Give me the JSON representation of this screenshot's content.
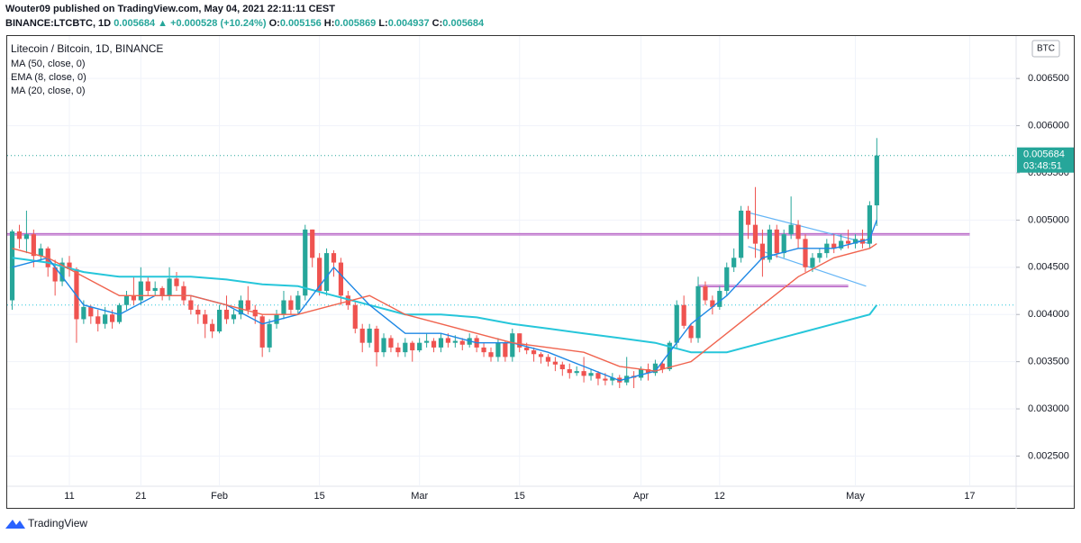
{
  "header": {
    "publisher": "Wouter09 published on TradingView.com, May 04, 2021 22:11:11 CEST",
    "symbol": "BINANCE:LTCBTC, 1D",
    "price": "0.005684",
    "change": "▲ +0.000528 (+10.24%)",
    "o_label": "O:",
    "o": "0.005156",
    "h_label": "H:",
    "h": "0.005869",
    "l_label": "L:",
    "l": "0.004937",
    "c_label": "C:",
    "c": "0.005684"
  },
  "footer": {
    "brand": "TradingView"
  },
  "chart_data": {
    "type": "candlestick",
    "title": "Litecoin / Bitcoin, 1D, BINANCE",
    "currency": "BTC",
    "up_color": "#26a69a",
    "down_color": "#ef5350",
    "xlim": [
      -0.7,
      140.5
    ],
    "xticks": [
      {
        "value": 8,
        "label": "11"
      },
      {
        "value": 18,
        "label": "21"
      },
      {
        "value": 29,
        "label": "Feb"
      },
      {
        "value": 43,
        "label": "15"
      },
      {
        "value": 57,
        "label": "Mar"
      },
      {
        "value": 71,
        "label": "15"
      },
      {
        "value": 88,
        "label": "Apr"
      },
      {
        "value": 99,
        "label": "12"
      },
      {
        "value": 118,
        "label": "May"
      },
      {
        "value": 134,
        "label": "17"
      }
    ],
    "ylim": [
      0.00218,
      0.00695
    ],
    "yticks": [
      {
        "value": 0.0025,
        "label": "0.002500"
      },
      {
        "value": 0.003,
        "label": "0.003000"
      },
      {
        "value": 0.0035,
        "label": "0.003500"
      },
      {
        "value": 0.004,
        "label": "0.004000"
      },
      {
        "value": 0.0045,
        "label": "0.004500"
      },
      {
        "value": 0.005,
        "label": "0.005000"
      },
      {
        "value": 0.0055,
        "label": "0.005500"
      },
      {
        "value": 0.006,
        "label": "0.006000"
      },
      {
        "value": 0.0065,
        "label": "0.006500"
      }
    ],
    "last_price": {
      "value": 0.005684,
      "label": "0.005684",
      "countdown": "03:48:51"
    },
    "candles": [
      [
        0.00415,
        0.0049,
        0.00405,
        0.00488
      ],
      [
        0.00488,
        0.00495,
        0.0047,
        0.0048
      ],
      [
        0.0048,
        0.0051,
        0.00465,
        0.00485
      ],
      [
        0.00485,
        0.0049,
        0.0045,
        0.00462
      ],
      [
        0.00462,
        0.00475,
        0.00455,
        0.0047
      ],
      [
        0.0047,
        0.00472,
        0.0044,
        0.0045
      ],
      [
        0.0045,
        0.00458,
        0.0042,
        0.00435
      ],
      [
        0.00435,
        0.0046,
        0.0043,
        0.00455
      ],
      [
        0.00455,
        0.00462,
        0.0044,
        0.00448
      ],
      [
        0.00448,
        0.0045,
        0.0037,
        0.00395
      ],
      [
        0.00395,
        0.00415,
        0.0039,
        0.00408
      ],
      [
        0.00408,
        0.0041,
        0.0039,
        0.00398
      ],
      [
        0.00398,
        0.00405,
        0.00382,
        0.0039
      ],
      [
        0.0039,
        0.00408,
        0.00385,
        0.004
      ],
      [
        0.004,
        0.00405,
        0.00385,
        0.00392
      ],
      [
        0.00392,
        0.00412,
        0.0039,
        0.0041
      ],
      [
        0.0041,
        0.00425,
        0.00405,
        0.0042
      ],
      [
        0.0042,
        0.0044,
        0.0041,
        0.00415
      ],
      [
        0.00415,
        0.0045,
        0.0041,
        0.00435
      ],
      [
        0.00435,
        0.0044,
        0.0042,
        0.00425
      ],
      [
        0.00425,
        0.00435,
        0.0042,
        0.00428
      ],
      [
        0.00428,
        0.0043,
        0.00415,
        0.0042
      ],
      [
        0.0042,
        0.0045,
        0.00415,
        0.00438
      ],
      [
        0.00438,
        0.00445,
        0.00425,
        0.0043
      ],
      [
        0.0043,
        0.00435,
        0.0041,
        0.00415
      ],
      [
        0.00415,
        0.0042,
        0.004,
        0.00405
      ],
      [
        0.00405,
        0.0041,
        0.0039,
        0.004
      ],
      [
        0.004,
        0.00405,
        0.00375,
        0.0039
      ],
      [
        0.0039,
        0.00395,
        0.00375,
        0.00382
      ],
      [
        0.00382,
        0.0041,
        0.0038,
        0.00405
      ],
      [
        0.00405,
        0.0042,
        0.0039,
        0.00395
      ],
      [
        0.00395,
        0.00405,
        0.0039,
        0.004
      ],
      [
        0.004,
        0.0042,
        0.00395,
        0.00415
      ],
      [
        0.00415,
        0.0043,
        0.004,
        0.00405
      ],
      [
        0.00405,
        0.0041,
        0.0039,
        0.00398
      ],
      [
        0.00398,
        0.004,
        0.00355,
        0.00365
      ],
      [
        0.00365,
        0.00395,
        0.0036,
        0.0039
      ],
      [
        0.0039,
        0.00405,
        0.00385,
        0.004
      ],
      [
        0.004,
        0.00425,
        0.00395,
        0.00415
      ],
      [
        0.00415,
        0.0042,
        0.004,
        0.00405
      ],
      [
        0.00405,
        0.00425,
        0.004,
        0.0042
      ],
      [
        0.0042,
        0.00495,
        0.00415,
        0.0049
      ],
      [
        0.0049,
        0.0049,
        0.0045,
        0.0046
      ],
      [
        0.0046,
        0.00465,
        0.0042,
        0.00425
      ],
      [
        0.00425,
        0.0047,
        0.0042,
        0.00465
      ],
      [
        0.00465,
        0.00468,
        0.0044,
        0.00455
      ],
      [
        0.00455,
        0.0046,
        0.0041,
        0.0042
      ],
      [
        0.0042,
        0.00425,
        0.00405,
        0.0041
      ],
      [
        0.0041,
        0.00415,
        0.0038,
        0.00385
      ],
      [
        0.00385,
        0.0039,
        0.0036,
        0.0037
      ],
      [
        0.0037,
        0.0039,
        0.00365,
        0.00385
      ],
      [
        0.00385,
        0.00388,
        0.00345,
        0.0036
      ],
      [
        0.0036,
        0.0038,
        0.00355,
        0.00375
      ],
      [
        0.00375,
        0.00378,
        0.0036,
        0.00365
      ],
      [
        0.00365,
        0.0037,
        0.00355,
        0.0036
      ],
      [
        0.0036,
        0.00375,
        0.00355,
        0.0037
      ],
      [
        0.0037,
        0.00372,
        0.0035,
        0.00362
      ],
      [
        0.00362,
        0.00375,
        0.0036,
        0.0037
      ],
      [
        0.0037,
        0.0038,
        0.00365,
        0.00372
      ],
      [
        0.00372,
        0.00375,
        0.0036,
        0.00365
      ],
      [
        0.00365,
        0.0038,
        0.0036,
        0.00375
      ],
      [
        0.00375,
        0.0038,
        0.00365,
        0.0037
      ],
      [
        0.0037,
        0.00378,
        0.00365,
        0.00372
      ],
      [
        0.00372,
        0.00375,
        0.00362,
        0.00368
      ],
      [
        0.00368,
        0.0038,
        0.00365,
        0.00375
      ],
      [
        0.00375,
        0.00378,
        0.0036,
        0.00365
      ],
      [
        0.00365,
        0.0037,
        0.00355,
        0.0036
      ],
      [
        0.0036,
        0.00365,
        0.0035,
        0.00355
      ],
      [
        0.00355,
        0.00375,
        0.0035,
        0.0037
      ],
      [
        0.0037,
        0.00372,
        0.0035,
        0.00355
      ],
      [
        0.00355,
        0.00385,
        0.0035,
        0.0038
      ],
      [
        0.0038,
        0.0038,
        0.0036,
        0.00365
      ],
      [
        0.00365,
        0.0037,
        0.00358,
        0.00362
      ],
      [
        0.00362,
        0.00365,
        0.0035,
        0.00358
      ],
      [
        0.00358,
        0.0036,
        0.00348,
        0.00355
      ],
      [
        0.00355,
        0.00358,
        0.00345,
        0.0035
      ],
      [
        0.0035,
        0.00355,
        0.0034,
        0.00347
      ],
      [
        0.00347,
        0.0035,
        0.00335,
        0.00342
      ],
      [
        0.00342,
        0.00348,
        0.00332,
        0.00338
      ],
      [
        0.00338,
        0.00345,
        0.00335,
        0.0034
      ],
      [
        0.0034,
        0.00355,
        0.00328,
        0.00335
      ],
      [
        0.00335,
        0.00342,
        0.0033,
        0.00338
      ],
      [
        0.00338,
        0.0034,
        0.00325,
        0.00332
      ],
      [
        0.00332,
        0.00338,
        0.00325,
        0.0033
      ],
      [
        0.0033,
        0.00338,
        0.00325,
        0.00333
      ],
      [
        0.00333,
        0.00336,
        0.00322,
        0.00328
      ],
      [
        0.00328,
        0.00355,
        0.00325,
        0.00335
      ],
      [
        0.00335,
        0.0034,
        0.00322,
        0.00333
      ],
      [
        0.00333,
        0.00345,
        0.0033,
        0.00342
      ],
      [
        0.00342,
        0.00348,
        0.0033,
        0.00338
      ],
      [
        0.00338,
        0.00352,
        0.00335,
        0.00348
      ],
      [
        0.00348,
        0.0035,
        0.00338,
        0.00342
      ],
      [
        0.00342,
        0.00372,
        0.0034,
        0.0037
      ],
      [
        0.0037,
        0.00415,
        0.00365,
        0.0041
      ],
      [
        0.0041,
        0.0042,
        0.00385,
        0.00388
      ],
      [
        0.00388,
        0.0039,
        0.0037,
        0.00375
      ],
      [
        0.00375,
        0.0044,
        0.0037,
        0.0043
      ],
      [
        0.0043,
        0.00435,
        0.0041,
        0.00415
      ],
      [
        0.00415,
        0.0042,
        0.004,
        0.00408
      ],
      [
        0.00408,
        0.0043,
        0.00405,
        0.00425
      ],
      [
        0.00425,
        0.00455,
        0.0042,
        0.0045
      ],
      [
        0.0045,
        0.0047,
        0.00445,
        0.0046
      ],
      [
        0.0046,
        0.00515,
        0.00455,
        0.0051
      ],
      [
        0.0051,
        0.00515,
        0.0048,
        0.00495
      ],
      [
        0.00495,
        0.00535,
        0.0046,
        0.00475
      ],
      [
        0.00475,
        0.0049,
        0.0044,
        0.00458
      ],
      [
        0.00458,
        0.00495,
        0.00455,
        0.0049
      ],
      [
        0.0049,
        0.00495,
        0.0046,
        0.00465
      ],
      [
        0.00465,
        0.0049,
        0.0046,
        0.00485
      ],
      [
        0.00485,
        0.00525,
        0.0048,
        0.00495
      ],
      [
        0.00495,
        0.005,
        0.0047,
        0.0048
      ],
      [
        0.0048,
        0.00485,
        0.00445,
        0.0045
      ],
      [
        0.0045,
        0.00465,
        0.00445,
        0.0046
      ],
      [
        0.0046,
        0.0047,
        0.00455,
        0.00465
      ],
      [
        0.00465,
        0.0048,
        0.0046,
        0.00475
      ],
      [
        0.00475,
        0.00485,
        0.00465,
        0.0047
      ],
      [
        0.0047,
        0.00485,
        0.00468,
        0.00478
      ],
      [
        0.00478,
        0.0049,
        0.0047,
        0.00475
      ],
      [
        0.00475,
        0.00485,
        0.0047,
        0.0048
      ],
      [
        0.0048,
        0.0049,
        0.0047,
        0.00475
      ],
      [
        0.00475,
        0.0052,
        0.0047,
        0.005156
      ],
      [
        0.005156,
        0.005869,
        0.004937,
        0.005684
      ]
    ],
    "series": [
      {
        "name": "MA (50, close, 0)",
        "color": "#26c6da",
        "x": [
          0,
          5,
          10,
          15,
          20,
          25,
          30,
          35,
          40,
          45,
          50,
          55,
          60,
          65,
          70,
          75,
          80,
          85,
          90,
          95,
          100,
          105,
          110,
          115,
          120,
          121
        ],
        "values": [
          0.0046,
          0.00455,
          0.00445,
          0.0044,
          0.0044,
          0.0044,
          0.00437,
          0.00432,
          0.0043,
          0.0042,
          0.0041,
          0.004,
          0.004,
          0.00397,
          0.0039,
          0.00385,
          0.0038,
          0.00375,
          0.0037,
          0.0036,
          0.0036,
          0.0037,
          0.0038,
          0.0039,
          0.004,
          0.0041
        ]
      },
      {
        "name": "EMA (8, close, 0)",
        "color": "#1e88e5",
        "x": [
          0,
          5,
          10,
          15,
          20,
          25,
          30,
          35,
          40,
          45,
          50,
          55,
          60,
          65,
          70,
          75,
          80,
          85,
          90,
          95,
          100,
          105,
          110,
          115,
          120,
          121
        ],
        "values": [
          0.0045,
          0.0046,
          0.0041,
          0.004,
          0.0042,
          0.0042,
          0.0041,
          0.0039,
          0.004,
          0.0045,
          0.0041,
          0.0038,
          0.0038,
          0.0037,
          0.0037,
          0.0036,
          0.00345,
          0.0033,
          0.0034,
          0.0039,
          0.0042,
          0.0046,
          0.0047,
          0.0047,
          0.0048,
          0.005
        ]
      },
      {
        "name": "MA (20, close, 0)",
        "color": "#f0644f",
        "x": [
          0,
          5,
          10,
          15,
          20,
          25,
          30,
          35,
          40,
          45,
          50,
          55,
          60,
          65,
          70,
          75,
          80,
          85,
          90,
          95,
          100,
          105,
          110,
          115,
          120,
          121
        ],
        "values": [
          0.0047,
          0.0046,
          0.0044,
          0.0042,
          0.0042,
          0.0042,
          0.0041,
          0.004,
          0.004,
          0.0041,
          0.0042,
          0.004,
          0.0039,
          0.0038,
          0.0037,
          0.00365,
          0.0036,
          0.00345,
          0.0034,
          0.0035,
          0.0038,
          0.0041,
          0.0044,
          0.0046,
          0.0047,
          0.00475
        ]
      }
    ],
    "drawings": [
      {
        "x": [
          -0.7,
          134
        ],
        "values": [
          0.00485,
          0.00485
        ],
        "color": "#9c27b0"
      },
      {
        "x": [
          96,
          117
        ],
        "values": [
          0.0043,
          0.0043
        ],
        "color": "#9c27b0"
      },
      {
        "x": [
          103,
          120
        ],
        "values": [
          0.00508,
          0.00475
        ],
        "color": "#64b5f6"
      },
      {
        "x": [
          103,
          119.5
        ],
        "values": [
          0.00472,
          0.0043
        ],
        "color": "#64b5f6"
      }
    ]
  }
}
